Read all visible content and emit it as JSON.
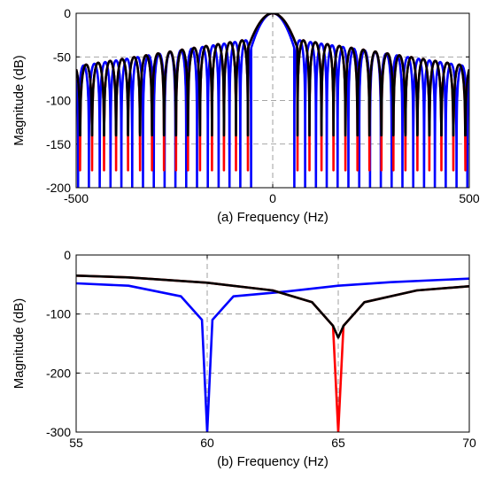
{
  "chart_data": [
    {
      "type": "line",
      "xlabel": "(a) Frequency (Hz)",
      "ylabel": "Magnitude (dB)",
      "xlim": [
        -500,
        500
      ],
      "ylim": [
        -200,
        0
      ],
      "xticks": [
        -500,
        0,
        500
      ],
      "yticks": [
        0,
        -50,
        -100,
        -150,
        -200
      ],
      "grid": true,
      "series": [
        {
          "color": "#0000ff",
          "main_lobe_half_width": 55,
          "null_spacing": 27.5,
          "null_depth": -200
        },
        {
          "color": "#ff0000",
          "main_lobe_half_width": 63,
          "null_spacing": 30.5,
          "null_depth": -180
        },
        {
          "color": "#000000",
          "main_lobe_half_width": 63,
          "null_spacing": 30.5,
          "null_depth": -140
        }
      ]
    },
    {
      "type": "line",
      "xlabel": "(b) Frequency (Hz)",
      "ylabel": "Magnitude (dB)",
      "xlim": [
        55,
        70
      ],
      "ylim": [
        -300,
        0
      ],
      "xticks": [
        55,
        60,
        65,
        70
      ],
      "yticks": [
        0,
        -100,
        -200,
        -300
      ],
      "grid": true,
      "series": [
        {
          "color": "#0000ff",
          "null_at": 60.0,
          "x": [
            55,
            57,
            59,
            59.8,
            60.0,
            60.2,
            61,
            63,
            65,
            67,
            69,
            70
          ],
          "y": [
            -48,
            -52,
            -70,
            -110,
            -300,
            -110,
            -70,
            -62,
            -52,
            -46,
            -42,
            -40
          ]
        },
        {
          "color": "#ff0000",
          "null_at": 65.0,
          "x": [
            55,
            57,
            60,
            62.5,
            64,
            64.8,
            65.0,
            65.2,
            66,
            68,
            70
          ],
          "y": [
            -35,
            -38,
            -47,
            -60,
            -80,
            -120,
            -300,
            -120,
            -80,
            -60,
            -53
          ]
        },
        {
          "color": "#000000",
          "null_at": 65.0,
          "x": [
            55,
            57,
            60,
            62.5,
            64,
            64.8,
            65.0,
            65.2,
            66,
            68,
            70
          ],
          "y": [
            -35,
            -38,
            -47,
            -60,
            -80,
            -120,
            -140,
            -120,
            -80,
            -60,
            -53
          ]
        }
      ]
    }
  ]
}
